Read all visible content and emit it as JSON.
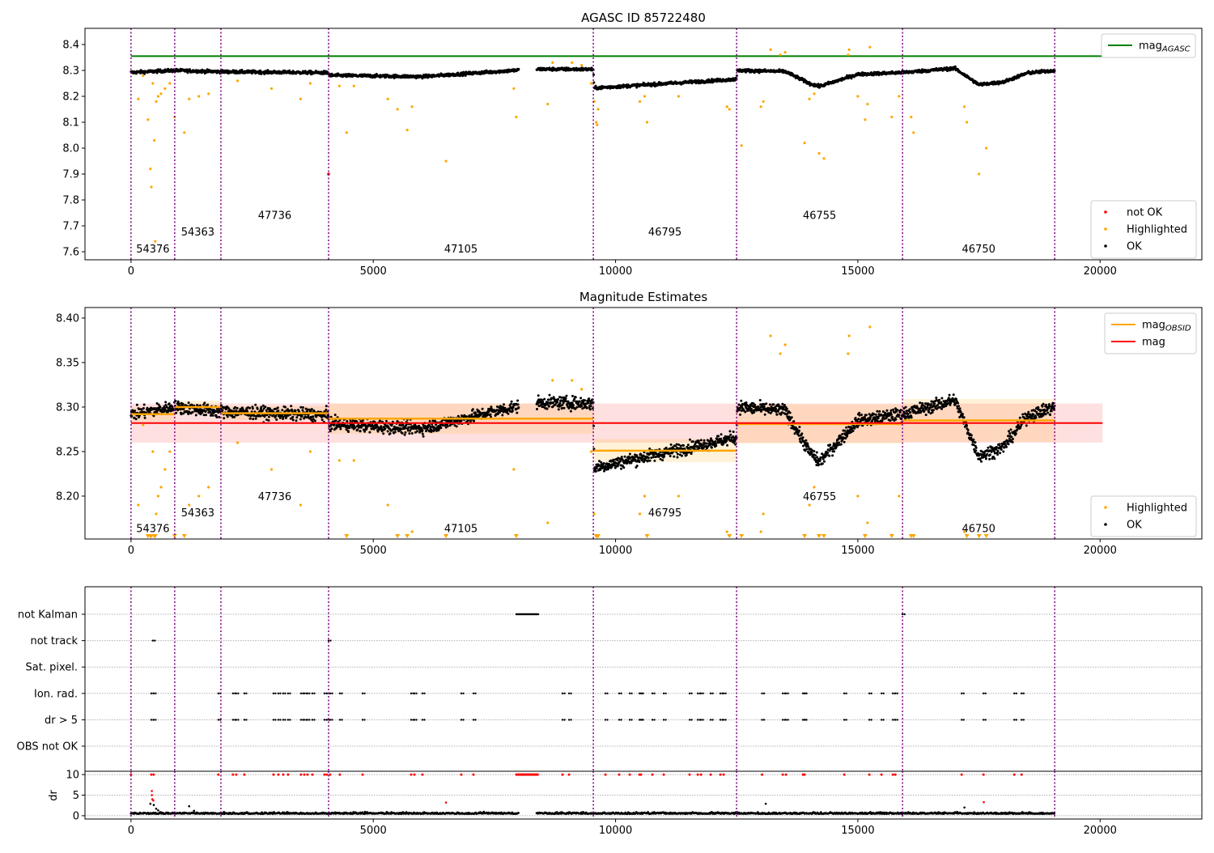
{
  "chart_data": [
    {
      "type": "scatter",
      "title": "AGASC ID 85722480",
      "xlim": [
        -950,
        22100
      ],
      "ylim": [
        7.569,
        8.4625
      ],
      "xticks": [
        0,
        5000,
        10000,
        15000,
        20000
      ],
      "yticks": [
        7.6,
        7.7,
        7.8,
        7.9,
        8.0,
        8.1,
        8.2,
        8.3,
        8.4
      ],
      "mag_agasc": 8.355,
      "legend_top": {
        "label": "mag",
        "sub": "AGASC",
        "color": "#008000",
        "placement": "top-right"
      },
      "legend_bottom": {
        "placement": "lower-right",
        "entries": [
          {
            "label": "not OK",
            "color": "#ff0000"
          },
          {
            "label": "Highlighted",
            "color": "#ffa500"
          },
          {
            "label": "OK",
            "color": "#000000"
          }
        ]
      },
      "not_ok_points": [
        [
          4077,
          7.9
        ]
      ]
    },
    {
      "type": "scatter",
      "title": "Magnitude Estimates",
      "xlim": [
        -950,
        22100
      ],
      "ylim": [
        8.1518,
        8.4118
      ],
      "xticks": [
        0,
        5000,
        10000,
        15000,
        20000
      ],
      "yticks": [
        8.2,
        8.25,
        8.3,
        8.35,
        8.4
      ],
      "mag": {
        "value": 8.282,
        "std": 0.022,
        "xrange": [
          0,
          20050
        ],
        "color": "#ff0000"
      },
      "legend_top": {
        "placement": "top-right",
        "entries": [
          {
            "label": "mag",
            "sub": "OBSID",
            "color": "#ffa500"
          },
          {
            "label": "mag",
            "sub": "",
            "color": "#ff0000"
          }
        ]
      },
      "legend_bottom": {
        "placement": "lower-right",
        "entries": [
          {
            "label": "Highlighted",
            "color": "#ffa500"
          },
          {
            "label": "OK",
            "color": "#000000"
          }
        ]
      }
    },
    {
      "type": "scatter",
      "title": "",
      "flag_rows": [
        "not Kalman",
        "not track",
        "Sat. pixel.",
        "Ion. rad.",
        "dr > 5",
        "OBS not OK"
      ],
      "flag_points": {
        "not Kalman": {
          "ranges": [
            [
              7953,
              8404
            ]
          ],
          "points": [
            15923
          ]
        },
        "not track": {
          "ranges": [],
          "points": [
            450,
            4077
          ]
        },
        "Sat. pixel.": {
          "ranges": [],
          "points": []
        },
        "Ion. rad.": {
          "ranges": [],
          "points": [
            418,
            468,
            1804,
            2105,
            2172,
            2339,
            2941,
            3041,
            3141,
            3241,
            3509,
            3576,
            3642,
            3743,
            3993,
            4043,
            4110,
            4311,
            4779,
            5781,
            5848,
            6015,
            6817,
            7068,
            8906,
            9040,
            9791,
            10075,
            10292,
            10493,
            10526,
            10760,
            10994,
            11529,
            11696,
            11763,
            11963,
            12164,
            12231,
            13024,
            13450,
            13517,
            13868,
            13901,
            14720,
            15238,
            15489,
            15723,
            15773,
            17143,
            17594,
            18229,
            18379
          ]
        },
        "dr > 5": {
          "ranges": [],
          "points": [
            418,
            468,
            1804,
            2105,
            2172,
            2339,
            2941,
            3041,
            3141,
            3241,
            3509,
            3576,
            3642,
            3743,
            3993,
            4043,
            4110,
            4311,
            4779,
            5781,
            5848,
            6015,
            6817,
            7068,
            8906,
            9040,
            9791,
            10075,
            10292,
            10493,
            10526,
            10760,
            10994,
            11529,
            11696,
            11763,
            11963,
            12164,
            12231,
            13024,
            13450,
            13517,
            13868,
            13901,
            14720,
            15238,
            15489,
            15723,
            15773,
            17143,
            17594,
            18229,
            18379
          ]
        },
        "OBS not OK": {
          "ranges": [],
          "points": []
        }
      },
      "dr": {
        "ylabel": "dr",
        "ylim": [
          -0.8,
          10.8
        ],
        "yticks": [
          0,
          5,
          10
        ],
        "xticks": [
          0,
          5000,
          10000,
          15000,
          20000
        ],
        "red_points": [
          [
            430,
            6
          ],
          [
            430,
            5
          ],
          [
            440,
            4
          ],
          [
            460,
            3.7
          ],
          [
            6500,
            3.2
          ],
          [
            17600,
            3.3
          ]
        ],
        "black_points": [
          [
            400,
            2.9
          ],
          [
            470,
            2.6
          ],
          [
            520,
            1.7
          ],
          [
            560,
            1.3
          ],
          [
            1200,
            2.3
          ],
          [
            1300,
            1.2
          ],
          [
            13100,
            2.9
          ],
          [
            17200,
            2.0
          ]
        ]
      }
    }
  ],
  "obsids": [
    {
      "id": "54376",
      "start": 0,
      "end": 902,
      "mag": 8.292,
      "std": 0.008
    },
    {
      "id": "54363",
      "start": 902,
      "end": 1855,
      "mag": 8.3,
      "std": 0.007
    },
    {
      "id": "47736",
      "start": 1855,
      "end": 4077,
      "mag": 8.293,
      "std": 0.008
    },
    {
      "id": "47105",
      "start": 4077,
      "end": 9541,
      "mag": 8.287,
      "std": 0.017
    },
    {
      "id": "46795",
      "start": 9541,
      "end": 12498,
      "mag": 8.251,
      "std": 0.013
    },
    {
      "id": "46755",
      "start": 12498,
      "end": 15923,
      "mag": 8.281,
      "std": 0.022
    },
    {
      "id": "46750",
      "start": 15923,
      "end": 19064,
      "mag": 8.285,
      "std": 0.024
    }
  ],
  "trend": [
    [
      0,
      8.292
    ],
    [
      900,
      8.3
    ],
    [
      1855,
      8.295
    ],
    [
      4070,
      8.291
    ],
    [
      4100,
      8.281
    ],
    [
      6000,
      8.276
    ],
    [
      7900,
      8.3
    ],
    [
      8400,
      8.305
    ],
    [
      9541,
      8.304
    ],
    [
      9560,
      8.232
    ],
    [
      12498,
      8.266
    ],
    [
      12510,
      8.3
    ],
    [
      13500,
      8.296
    ],
    [
      14000,
      8.25
    ],
    [
      14200,
      8.238
    ],
    [
      15000,
      8.285
    ],
    [
      15923,
      8.292
    ],
    [
      17000,
      8.308
    ],
    [
      17500,
      8.245
    ],
    [
      18000,
      8.255
    ],
    [
      18500,
      8.29
    ],
    [
      19064,
      8.3
    ]
  ],
  "data_gap": [
    8003,
    8371
  ],
  "highlighted": [
    [
      150,
      8.19
    ],
    [
      250,
      8.28
    ],
    [
      350,
      8.11
    ],
    [
      400,
      7.92
    ],
    [
      420,
      7.85
    ],
    [
      450,
      8.25
    ],
    [
      480,
      8.03
    ],
    [
      500,
      7.64
    ],
    [
      520,
      8.18
    ],
    [
      560,
      8.2
    ],
    [
      620,
      8.21
    ],
    [
      700,
      8.23
    ],
    [
      800,
      8.25
    ],
    [
      900,
      8.12
    ],
    [
      1100,
      8.06
    ],
    [
      1200,
      8.19
    ],
    [
      1400,
      8.2
    ],
    [
      1600,
      8.21
    ],
    [
      2200,
      8.26
    ],
    [
      2900,
      8.23
    ],
    [
      3500,
      8.19
    ],
    [
      3700,
      8.25
    ],
    [
      4300,
      8.24
    ],
    [
      4450,
      8.06
    ],
    [
      4600,
      8.24
    ],
    [
      5300,
      8.19
    ],
    [
      5500,
      8.15
    ],
    [
      5700,
      8.07
    ],
    [
      5800,
      8.16
    ],
    [
      6500,
      7.95
    ],
    [
      7900,
      8.23
    ],
    [
      7950,
      8.12
    ],
    [
      8600,
      8.17
    ],
    [
      8700,
      8.33
    ],
    [
      9100,
      8.33
    ],
    [
      9300,
      8.32
    ],
    [
      9500,
      8.25
    ],
    [
      9560,
      8.18
    ],
    [
      9600,
      8.1
    ],
    [
      9620,
      8.09
    ],
    [
      9640,
      8.15
    ],
    [
      10500,
      8.18
    ],
    [
      10600,
      8.2
    ],
    [
      10650,
      8.1
    ],
    [
      11300,
      8.2
    ],
    [
      12300,
      8.16
    ],
    [
      12350,
      8.15
    ],
    [
      12600,
      8.01
    ],
    [
      13000,
      8.16
    ],
    [
      13050,
      8.18
    ],
    [
      13200,
      8.38
    ],
    [
      13400,
      8.36
    ],
    [
      13500,
      8.37
    ],
    [
      13900,
      8.02
    ],
    [
      14000,
      8.19
    ],
    [
      14100,
      8.21
    ],
    [
      14200,
      7.98
    ],
    [
      14300,
      7.96
    ],
    [
      14800,
      8.36
    ],
    [
      14820,
      8.38
    ],
    [
      15000,
      8.2
    ],
    [
      15150,
      8.11
    ],
    [
      15200,
      8.17
    ],
    [
      15250,
      8.39
    ],
    [
      15700,
      8.12
    ],
    [
      15850,
      8.2
    ],
    [
      16100,
      8.12
    ],
    [
      16150,
      8.06
    ],
    [
      17200,
      8.16
    ],
    [
      17250,
      8.1
    ],
    [
      17500,
      7.9
    ],
    [
      17650,
      8.0
    ]
  ]
}
